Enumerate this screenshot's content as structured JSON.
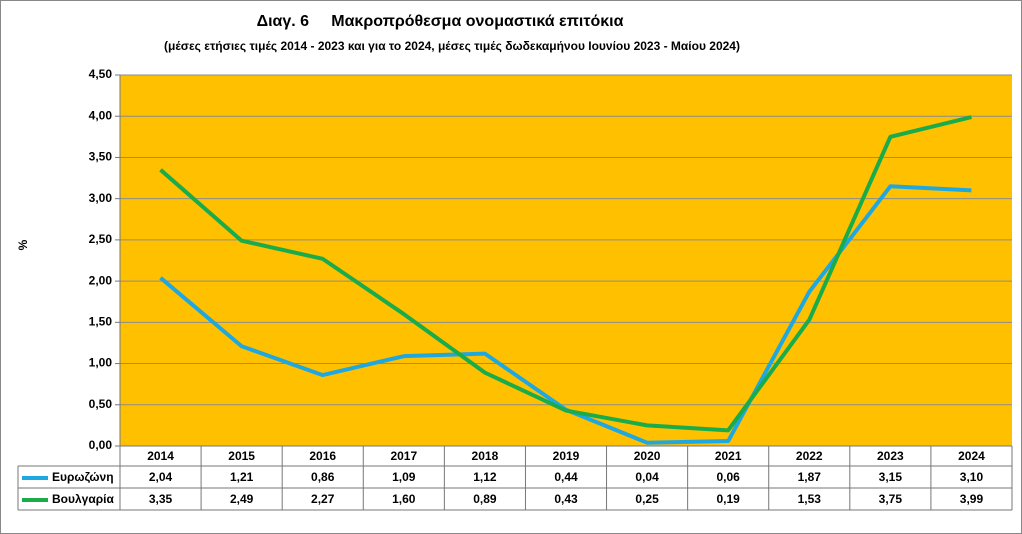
{
  "chart_data": {
    "type": "line",
    "title": "Διαγ. 6     Μακροπρόθεσμα ονομαστικά επιτόκια",
    "subtitle": "(μέσες ετήσιες τιμές 2014 - 2023 και για το 2024, μέσες τιμές δωδεκαμήνου Ιουνίου 2023 - Μαίου 2024)",
    "y_label": "%",
    "categories": [
      "2014",
      "2015",
      "2016",
      "2017",
      "2018",
      "2019",
      "2020",
      "2021",
      "2022",
      "2023",
      "2024"
    ],
    "series": [
      {
        "name": "Ευρωζώνη",
        "color": "#1fa8e0",
        "values": [
          2.04,
          1.21,
          0.86,
          1.09,
          1.12,
          0.44,
          0.04,
          0.06,
          1.87,
          3.15,
          3.1
        ],
        "value_labels": [
          "2,04",
          "1,21",
          "0,86",
          "1,09",
          "1,12",
          "0,44",
          "0,04",
          "0,06",
          "1,87",
          "3,15",
          "3,10"
        ]
      },
      {
        "name": "Βουλγαρία",
        "color": "#1aab4a",
        "values": [
          3.35,
          2.49,
          2.27,
          1.6,
          0.89,
          0.43,
          0.25,
          0.19,
          1.53,
          3.75,
          3.99
        ],
        "value_labels": [
          "3,35",
          "2,49",
          "2,27",
          "1,60",
          "0,89",
          "0,43",
          "0,25",
          "0,19",
          "1,53",
          "3,75",
          "3,99"
        ]
      }
    ],
    "ylim": [
      0,
      4.5
    ],
    "yticks": [
      {
        "value": 0,
        "label": "0,00"
      },
      {
        "value": 0.5,
        "label": "0,50"
      },
      {
        "value": 1,
        "label": "1,00"
      },
      {
        "value": 1.5,
        "label": "1,50"
      },
      {
        "value": 2,
        "label": "2,00"
      },
      {
        "value": 2.5,
        "label": "2,50"
      },
      {
        "value": 3,
        "label": "3,00"
      },
      {
        "value": 3.5,
        "label": "3,50"
      },
      {
        "value": 4,
        "label": "4,00"
      },
      {
        "value": 4.5,
        "label": "4,50"
      }
    ],
    "grid": true,
    "plot_background": "#ffc000"
  }
}
